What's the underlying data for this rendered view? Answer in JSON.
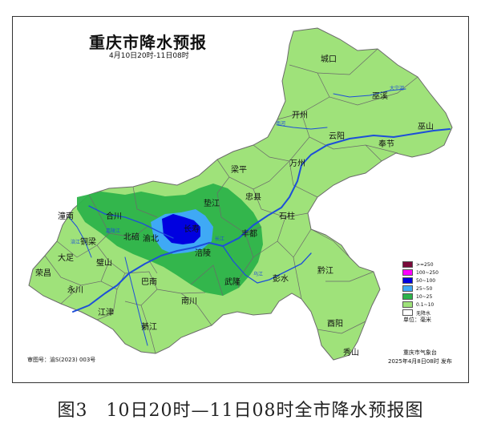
{
  "map": {
    "title": "重庆市降水预报",
    "subtitle": "4月10日20时-11日08时",
    "counties": [
      {
        "id": "chengkou",
        "name": "城口"
      },
      {
        "id": "wuxi",
        "name": "巫溪"
      },
      {
        "id": "kaizhou",
        "name": "开州"
      },
      {
        "id": "yunyang",
        "name": "云阳"
      },
      {
        "id": "fengjie",
        "name": "奉节"
      },
      {
        "id": "wushan",
        "name": "巫山"
      },
      {
        "id": "liangping",
        "name": "梁平"
      },
      {
        "id": "wanzhou",
        "name": "万州"
      },
      {
        "id": "dianjiang",
        "name": "垫江"
      },
      {
        "id": "zhongxian",
        "name": "忠县"
      },
      {
        "id": "shizhu",
        "name": "石柱"
      },
      {
        "id": "tongnan",
        "name": "潼南"
      },
      {
        "id": "hechuan",
        "name": "合川"
      },
      {
        "id": "changshou",
        "name": "长寿"
      },
      {
        "id": "tongliang",
        "name": "铜梁"
      },
      {
        "id": "beibei",
        "name": "北碚"
      },
      {
        "id": "yubei",
        "name": "渝北"
      },
      {
        "id": "fengdu",
        "name": "丰都"
      },
      {
        "id": "dazu",
        "name": "大足"
      },
      {
        "id": "bishan",
        "name": "璧山"
      },
      {
        "id": "fuling",
        "name": "涪陵"
      },
      {
        "id": "rongchang",
        "name": "荣昌"
      },
      {
        "id": "yongchuan",
        "name": "永川"
      },
      {
        "id": "banan",
        "name": "巴南"
      },
      {
        "id": "wulong",
        "name": "武隆"
      },
      {
        "id": "pengshui",
        "name": "彭水"
      },
      {
        "id": "qianjiang",
        "name": "黔江"
      },
      {
        "id": "jiangjin",
        "name": "江津"
      },
      {
        "id": "nanchuan",
        "name": "南川"
      },
      {
        "id": "qijiang",
        "name": "綦江"
      },
      {
        "id": "youyang",
        "name": "酉阳"
      },
      {
        "id": "xiushan",
        "name": "秀山"
      }
    ],
    "rivers": [
      {
        "id": "changjiang",
        "name": "长江"
      },
      {
        "id": "daning",
        "name": "大宁河"
      },
      {
        "id": "nanhe",
        "name": "南河"
      },
      {
        "id": "fuqiang",
        "name": "涪江"
      },
      {
        "id": "jialing",
        "name": "嘉陵江"
      },
      {
        "id": "wujiang",
        "name": "乌江"
      }
    ],
    "legend": [
      {
        "label": ">=250",
        "color": "#7a0a3a"
      },
      {
        "label": "100~250",
        "color": "#ff00ff"
      },
      {
        "label": "50~100",
        "color": "#0000e0"
      },
      {
        "label": "25~50",
        "color": "#3fa9f5"
      },
      {
        "label": "10~25",
        "color": "#2db34a"
      },
      {
        "label": "0.1~10",
        "color": "#9fe27a"
      },
      {
        "label": "无降水",
        "color": "#ffffff"
      }
    ],
    "unit": "单位：毫米",
    "issuer": "重庆市气象台",
    "issue_time": "2025年4月8日08时 发布",
    "review_no": "审图号：渝S(2023) 003号"
  },
  "caption": "图3　10日20时—11日08时全市降水预报图"
}
